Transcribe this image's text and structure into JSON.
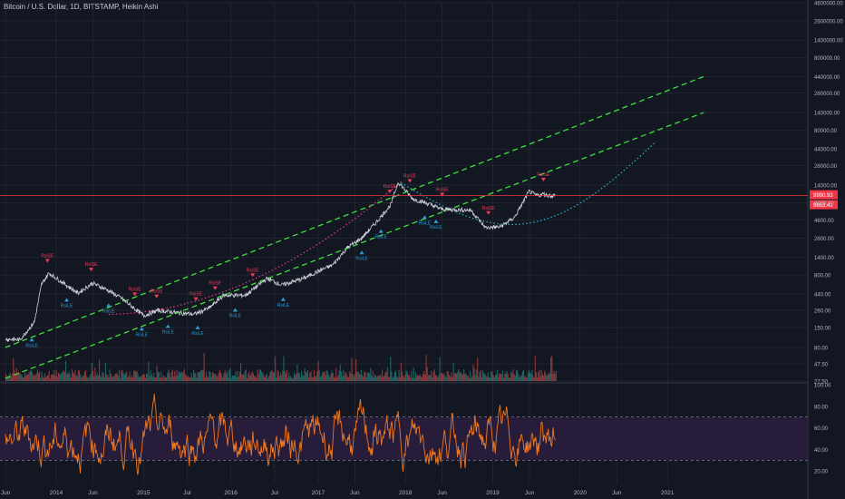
{
  "header": {
    "title": "Bitcoin / U.S. Dollar, 1D, BITSTAMP, Heikin Ashi"
  },
  "colors": {
    "background": "#131722",
    "grid": "#2a2e39",
    "price_line": "#d0d3da",
    "channel": "#3ee03e",
    "curve_pink": "#e0407a",
    "curve_cyan": "#2ab9cc",
    "sell_marker": "#f23c5a",
    "buy_marker": "#2a9cd8",
    "current_price_bg": "#f23645",
    "rsi_line": "#f07820",
    "rsi_band": "#2b1e3e",
    "volume_up": "#26a69a",
    "volume_down": "#ef5350"
  },
  "chart_data": [
    {
      "type": "line",
      "panel": "price",
      "scale": "log",
      "title": "Bitcoin / U.S. Dollar, 1D, BITSTAMP, Heikin Ashi",
      "xlabel": "",
      "ylabel": "",
      "x_ticks": [
        "Jun",
        "2014",
        "Jun",
        "2015",
        "Jul",
        "2016",
        "Jul",
        "2017",
        "Jun",
        "2018",
        "Jun",
        "2019",
        "Jun",
        "2020",
        "Jun",
        "2021"
      ],
      "y_ticks": [
        "4600000.00",
        "2600000.00",
        "1400000.00",
        "800000.00",
        "440000.00",
        "260000.00",
        "140000.00",
        "80000.00",
        "44000.00",
        "26000.00",
        "14000.00",
        "8000.00",
        "4600.00",
        "2600.00",
        "1400.00",
        "800.00",
        "440.00",
        "260.00",
        "150.00",
        "80.00",
        "47.50",
        "27.50"
      ],
      "current_price_labels": [
        "9990.93",
        "9863.41"
      ],
      "x": [
        "2013-06",
        "2013-08",
        "2013-10",
        "2013-11",
        "2013-12",
        "2014-02",
        "2014-04",
        "2014-06",
        "2014-08",
        "2014-10",
        "2015-01",
        "2015-03",
        "2015-06",
        "2015-08",
        "2015-10",
        "2015-12",
        "2016-03",
        "2016-06",
        "2016-08",
        "2016-11",
        "2017-01",
        "2017-03",
        "2017-05",
        "2017-07",
        "2017-09",
        "2017-11",
        "2017-12",
        "2018-02",
        "2018-04",
        "2018-06",
        "2018-08",
        "2018-10",
        "2018-12",
        "2019-02",
        "2019-04",
        "2019-06",
        "2019-07",
        "2019-08",
        "2019-09"
      ],
      "series": [
        {
          "values": [
            105,
            102,
            180,
            600,
            850,
            620,
            450,
            620,
            500,
            380,
            220,
            260,
            240,
            230,
            280,
            420,
            420,
            720,
            580,
            720,
            900,
            1100,
            1900,
            2600,
            4300,
            7500,
            15500,
            9000,
            7800,
            6500,
            6400,
            6300,
            3600,
            3700,
            5000,
            11500,
            10000,
            10500,
            9990
          ]
        }
      ],
      "channel_lines": [
        {
          "start": [
            "2013-06",
            80
          ],
          "end": [
            "2021-06",
            440000
          ]
        },
        {
          "start": [
            "2013-06",
            30
          ],
          "end": [
            "2021-06",
            140000
          ]
        }
      ],
      "signals": {
        "sell_label": "RsiSE",
        "buy_label": "RsiLE",
        "sub_labels": [
          "-1",
          "-2",
          "+1",
          "+2"
        ]
      }
    },
    {
      "type": "line",
      "panel": "rsi",
      "y_ticks": [
        "100.00",
        "80.00",
        "60.00",
        "40.00",
        "20.00"
      ],
      "ylim": [
        0,
        100
      ],
      "band": [
        30,
        70
      ]
    }
  ]
}
